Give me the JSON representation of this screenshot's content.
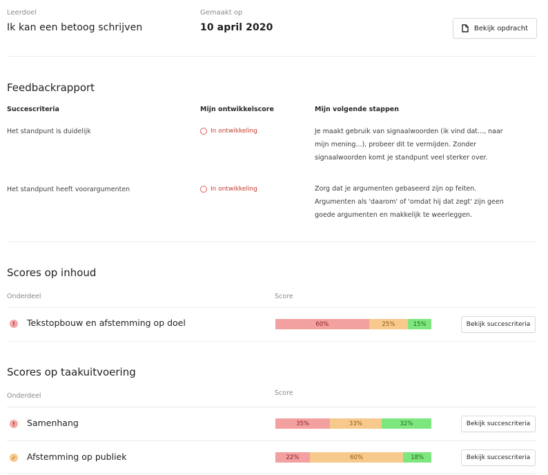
{
  "header": {
    "leerdoel_label": "Leerdoel",
    "leerdoel_value": "Ik kan een betoog schrijven",
    "gemaakt_label": "Gemaakt op",
    "gemaakt_value": "10 april 2020",
    "view_assignment_button": "Bekijk opdracht"
  },
  "feedback": {
    "title": "Feedbackrapport",
    "columns": [
      "Succescriteria",
      "Mijn ontwikkelscore",
      "Mijn volgende stappen"
    ],
    "rows": [
      {
        "criterium": "Het standpunt is duidelijk",
        "status": "In ontwikkeling",
        "steps": "Je maakt gebruik van signaalwoorden (ik vind dat..., naar mijn mening...), probeer dit te vermijden. Zonder signaalwoorden komt je standpunt veel sterker over."
      },
      {
        "criterium": "Het standpunt heeft voorargumenten",
        "status": "In ontwikkeling",
        "steps": "Zorg dat je argumenten gebaseerd zijn op feiten. Argumenten als 'daarom' of 'omdat hij dat zegt' zijn geen goede argumenten en makkelijk te weerleggen."
      }
    ]
  },
  "inhoud": {
    "title": "Scores op inhoud",
    "col_part": "Onderdeel",
    "col_score": "Score",
    "rows": [
      {
        "name": "Tekstopbouw en afstemming op doel",
        "icon": "alert-icon",
        "segments": [
          {
            "value": 60,
            "label": "60%",
            "color": "#f3a0a0"
          },
          {
            "value": 25,
            "label": "25%",
            "color": "#f8c98c"
          },
          {
            "value": 15,
            "label": "15%",
            "color": "#7ee67e"
          }
        ],
        "button": "Bekijk succescriteria"
      }
    ]
  },
  "taak": {
    "title": "Scores op taakuitvoering",
    "col_part": "Onderdeel",
    "col_score": "Score",
    "rows": [
      {
        "name": "Samenhang",
        "icon": "alert-icon",
        "segments": [
          {
            "value": 35,
            "label": "35%",
            "color": "#f3a0a0"
          },
          {
            "value": 33,
            "label": "33%",
            "color": "#f8c98c"
          },
          {
            "value": 32,
            "label": "32%",
            "color": "#7ee67e"
          }
        ],
        "button": "Bekijk succescriteria"
      },
      {
        "name": "Afstemming op publiek",
        "icon": "check-icon",
        "segments": [
          {
            "value": 22,
            "label": "22%",
            "color": "#f3a0a0"
          },
          {
            "value": 60,
            "label": "60%",
            "color": "#f8c98c"
          },
          {
            "value": 18,
            "label": "18%",
            "color": "#7ee67e"
          }
        ],
        "button": "Bekijk succescriteria"
      }
    ]
  }
}
